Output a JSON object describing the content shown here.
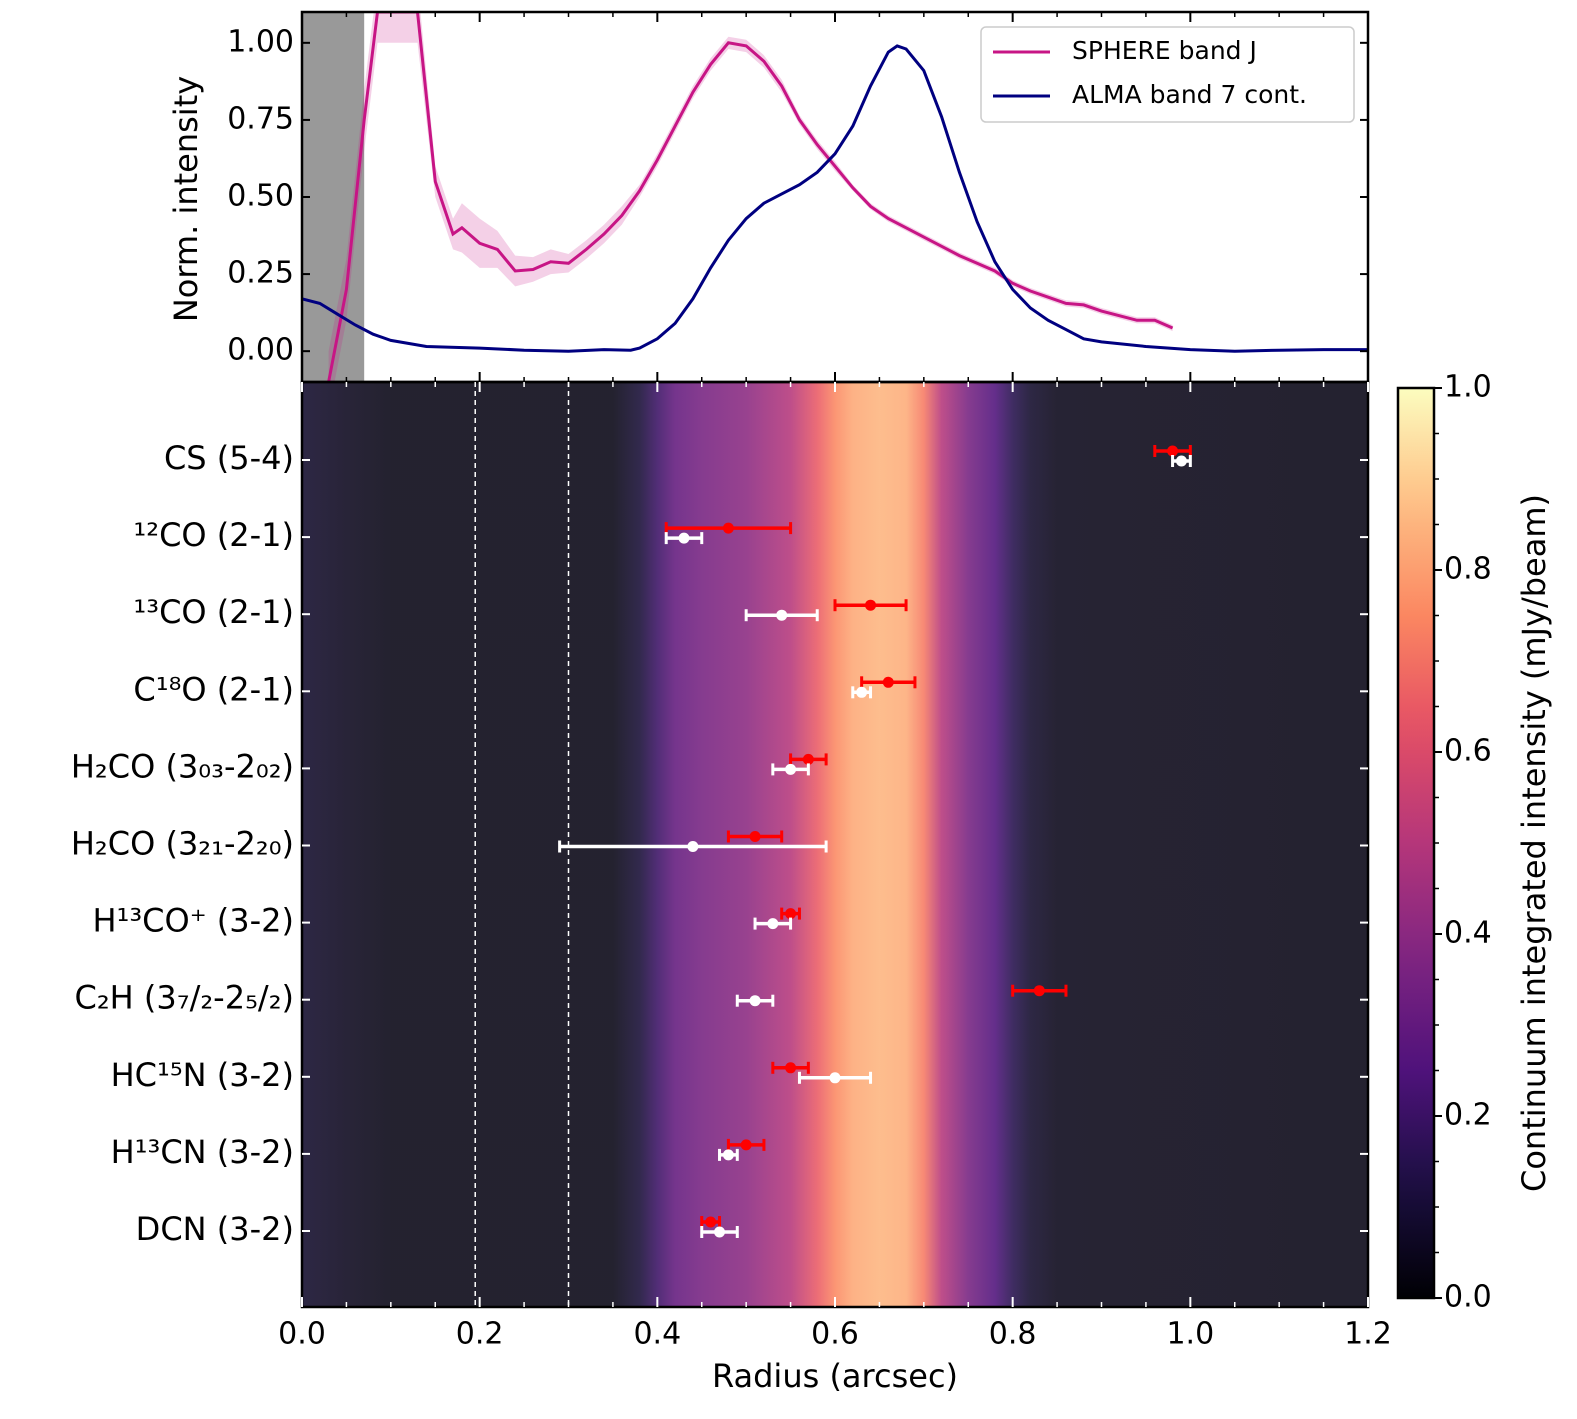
{
  "chart_data": [
    {
      "type": "line",
      "ylabel": "Norm. intensity",
      "xlim": [
        0,
        1.2
      ],
      "ylim": [
        -0.1,
        1.1
      ],
      "xticks": [
        0,
        0.2,
        0.4,
        0.6,
        0.8,
        1.0,
        1.2
      ],
      "xticks_minor": [
        0.05,
        0.1,
        0.15,
        0.25,
        0.3,
        0.35,
        0.45,
        0.5,
        0.55,
        0.65,
        0.7,
        0.75,
        0.85,
        0.9,
        0.95,
        1.05,
        1.1,
        1.15
      ],
      "yticks": [
        {
          "value": 0,
          "label": "0.00"
        },
        {
          "value": 0.25,
          "label": "0.25"
        },
        {
          "value": 0.5,
          "label": "0.50"
        },
        {
          "value": 0.75,
          "label": "0.75"
        },
        {
          "value": 1,
          "label": "1.00"
        }
      ],
      "legend": "upper right",
      "masked_region": [
        0,
        0.07
      ],
      "series": [
        {
          "name": "SPHERE band J",
          "color": "#c71585",
          "x": [
            0.03,
            0.05,
            0.07,
            0.085,
            0.13,
            0.15,
            0.17,
            0.18,
            0.2,
            0.22,
            0.24,
            0.26,
            0.28,
            0.3,
            0.32,
            0.34,
            0.36,
            0.38,
            0.4,
            0.42,
            0.44,
            0.46,
            0.48,
            0.5,
            0.52,
            0.54,
            0.56,
            0.58,
            0.6,
            0.62,
            0.64,
            0.66,
            0.68,
            0.7,
            0.72,
            0.74,
            0.76,
            0.78,
            0.8,
            0.82,
            0.84,
            0.86,
            0.88,
            0.9,
            0.92,
            0.94,
            0.96,
            0.98
          ],
          "values": [
            -0.1,
            0.2,
            0.75,
            1.1,
            1.1,
            0.55,
            0.38,
            0.4,
            0.35,
            0.33,
            0.26,
            0.265,
            0.29,
            0.285,
            0.33,
            0.38,
            0.44,
            0.52,
            0.62,
            0.73,
            0.84,
            0.93,
            1.0,
            0.99,
            0.94,
            0.86,
            0.75,
            0.67,
            0.6,
            0.53,
            0.47,
            0.43,
            0.4,
            0.37,
            0.34,
            0.31,
            0.285,
            0.26,
            0.22,
            0.195,
            0.175,
            0.155,
            0.15,
            0.13,
            0.115,
            0.1,
            0.1,
            0.075
          ],
          "errors": [
            0.1,
            0.1,
            0.1,
            0.1,
            0.1,
            0.05,
            0.05,
            0.08,
            0.08,
            0.06,
            0.05,
            0.04,
            0.04,
            0.03,
            0.03,
            0.03,
            0.03,
            0.02,
            0.02,
            0.02,
            0.02,
            0.02,
            0.02,
            0.02,
            0.02,
            0.02,
            0.015,
            0.015,
            0.015,
            0.01,
            0.01,
            0.01,
            0.01,
            0.01,
            0.01,
            0.01,
            0.01,
            0.01,
            0.01,
            0.01,
            0.01,
            0.01,
            0.01,
            0.01,
            0.01,
            0.01,
            0.01,
            0.01
          ]
        },
        {
          "name": "ALMA band 7 cont.",
          "color": "#000080",
          "x": [
            0,
            0.02,
            0.04,
            0.06,
            0.08,
            0.1,
            0.14,
            0.2,
            0.25,
            0.3,
            0.34,
            0.37,
            0.38,
            0.4,
            0.42,
            0.44,
            0.46,
            0.48,
            0.5,
            0.52,
            0.54,
            0.56,
            0.58,
            0.6,
            0.62,
            0.64,
            0.66,
            0.67,
            0.68,
            0.7,
            0.72,
            0.74,
            0.76,
            0.78,
            0.8,
            0.82,
            0.84,
            0.86,
            0.88,
            0.9,
            0.95,
            1.0,
            1.05,
            1.1,
            1.15,
            1.2
          ],
          "values": [
            0.17,
            0.155,
            0.12,
            0.085,
            0.055,
            0.035,
            0.015,
            0.01,
            0.003,
            0.0,
            0.005,
            0.003,
            0.01,
            0.04,
            0.09,
            0.17,
            0.27,
            0.36,
            0.43,
            0.48,
            0.51,
            0.54,
            0.58,
            0.64,
            0.73,
            0.86,
            0.97,
            0.99,
            0.98,
            0.91,
            0.76,
            0.58,
            0.42,
            0.29,
            0.2,
            0.14,
            0.1,
            0.07,
            0.04,
            0.03,
            0.015,
            0.005,
            0.0,
            0.003,
            0.005,
            0.005
          ]
        }
      ]
    },
    {
      "type": "errorbar",
      "xlabel": "Radius (arcsec)",
      "xlim": [
        0,
        1.2
      ],
      "xticks": [
        {
          "value": 0,
          "label": "0.0"
        },
        {
          "value": 0.2,
          "label": "0.2"
        },
        {
          "value": 0.4,
          "label": "0.4"
        },
        {
          "value": 0.6,
          "label": "0.6"
        },
        {
          "value": 0.8,
          "label": "0.8"
        },
        {
          "value": 1.0,
          "label": "1.0"
        },
        {
          "value": 1.2,
          "label": "1.2"
        }
      ],
      "xticks_minor": [
        0.05,
        0.1,
        0.15,
        0.25,
        0.3,
        0.35,
        0.45,
        0.5,
        0.55,
        0.65,
        0.7,
        0.75,
        0.85,
        0.9,
        0.95,
        1.05,
        1.1,
        1.15
      ],
      "categories": [
        "CS (5-4)",
        "¹²CO (2-1)",
        "¹³CO (2-1)",
        "C¹⁸O (2-1)",
        "H₂CO (3₀₃-2₀₂)",
        "H₂CO (3₂₁-2₂₀)",
        "H¹³CO⁺ (3-2)",
        "C₂H (3₇/₂-2₅/₂)",
        "HC¹⁵N (3-2)",
        "H¹³CN (3-2)",
        "DCN (3-2)"
      ],
      "series": [
        {
          "color": "#ff0000",
          "values": [
            0.98,
            0.48,
            0.64,
            0.66,
            0.57,
            0.51,
            0.55,
            0.83,
            0.55,
            0.5,
            0.46
          ],
          "errors": [
            0.02,
            0.07,
            0.04,
            0.03,
            0.02,
            0.03,
            0.01,
            0.03,
            0.02,
            0.02,
            0.01
          ]
        },
        {
          "color": "#ffffff",
          "values": [
            0.99,
            0.43,
            0.54,
            0.63,
            0.55,
            0.44,
            0.53,
            0.51,
            0.6,
            0.48,
            0.47
          ],
          "errors": [
            0.01,
            0.02,
            0.04,
            0.01,
            0.02,
            0.15,
            0.02,
            0.02,
            0.04,
            0.01,
            0.02
          ]
        }
      ],
      "vlines": [
        0.195,
        0.3
      ],
      "background": {
        "x": [
          0,
          0.05,
          0.1,
          0.35,
          0.38,
          0.4,
          0.42,
          0.45,
          0.5,
          0.55,
          0.58,
          0.6,
          0.62,
          0.65,
          0.68,
          0.7,
          0.72,
          0.75,
          0.78,
          0.8,
          0.82,
          0.85,
          1.2
        ],
        "values": [
          0.08,
          0.05,
          0.03,
          0.03,
          0.1,
          0.2,
          0.3,
          0.35,
          0.4,
          0.5,
          0.65,
          0.75,
          0.82,
          0.85,
          0.83,
          0.72,
          0.5,
          0.35,
          0.25,
          0.15,
          0.08,
          0.04,
          0.03
        ]
      },
      "colorbar": {
        "colormap": "magma",
        "label": "Continuum integrated intensity (mJy/beam)",
        "lim": [
          0,
          1
        ],
        "ticks": [
          {
            "value": 0,
            "label": "0.0"
          },
          {
            "value": 0.2,
            "label": "0.2"
          },
          {
            "value": 0.4,
            "label": "0.4"
          },
          {
            "value": 0.6,
            "label": "0.6"
          },
          {
            "value": 0.8,
            "label": "0.8"
          },
          {
            "value": 1,
            "label": "1.0"
          }
        ]
      }
    }
  ]
}
